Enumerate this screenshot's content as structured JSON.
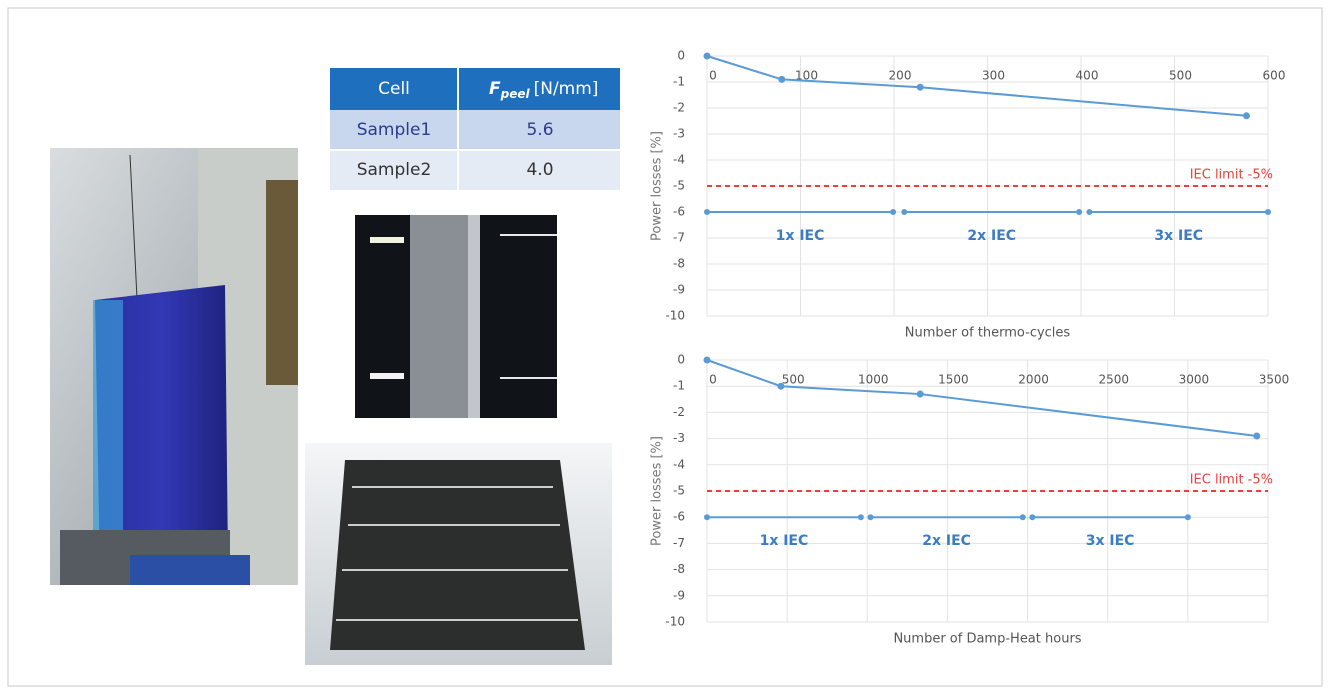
{
  "table": {
    "header": {
      "cell": "Cell",
      "symbol": "F",
      "subscript": "peel",
      "unit": "[N/mm]"
    },
    "rows": [
      [
        "Sample1",
        "5.6"
      ],
      [
        "Sample2",
        "4.0"
      ]
    ]
  },
  "chart_data": [
    {
      "type": "line",
      "x_label": "Number of thermo-cycles",
      "y_label": "Power losses [%]",
      "x": [
        0,
        80,
        228,
        577
      ],
      "values": [
        0,
        -0.9,
        -1.2,
        -2.3
      ],
      "color": "#5b9bd5",
      "xlim": [
        0,
        600
      ],
      "xticks": [
        0,
        100,
        200,
        300,
        400,
        500,
        600
      ],
      "ylim": [
        -10,
        0
      ],
      "yticks": [
        0,
        -1,
        -2,
        -3,
        -4,
        -5,
        -6,
        -7,
        -8,
        -9,
        -10
      ],
      "grid": true,
      "limit": {
        "value": -5,
        "label": "IEC limit -5%",
        "color": "#e8413c"
      },
      "ranges": {
        "level": -6,
        "items": [
          {
            "label": "1x IEC",
            "start": 0,
            "end": 199
          },
          {
            "label": "2x IEC",
            "start": 211,
            "end": 398
          },
          {
            "label": "3x IEC",
            "start": 409,
            "end": 600
          }
        ]
      }
    },
    {
      "type": "line",
      "x_label": "Number of Damp-Heat hours",
      "y_label": "Power losses [%]",
      "x": [
        0,
        461,
        1330,
        3430
      ],
      "values": [
        0,
        -1.0,
        -1.3,
        -2.9
      ],
      "color": "#5b9bd5",
      "xlim": [
        0,
        3500
      ],
      "xticks": [
        0,
        500,
        1000,
        1500,
        2000,
        2500,
        3000,
        3500
      ],
      "ylim": [
        -10,
        0
      ],
      "yticks": [
        0,
        -1,
        -2,
        -3,
        -4,
        -5,
        -6,
        -7,
        -8,
        -9,
        -10
      ],
      "grid": true,
      "limit": {
        "value": -5,
        "label": "IEC limit -5%",
        "color": "#e8413c"
      },
      "ranges": {
        "level": -6,
        "items": [
          {
            "label": "1x IEC",
            "start": 0,
            "end": 960
          },
          {
            "label": "2x IEC",
            "start": 1020,
            "end": 1970
          },
          {
            "label": "3x IEC",
            "start": 2030,
            "end": 3000
          }
        ]
      }
    }
  ]
}
